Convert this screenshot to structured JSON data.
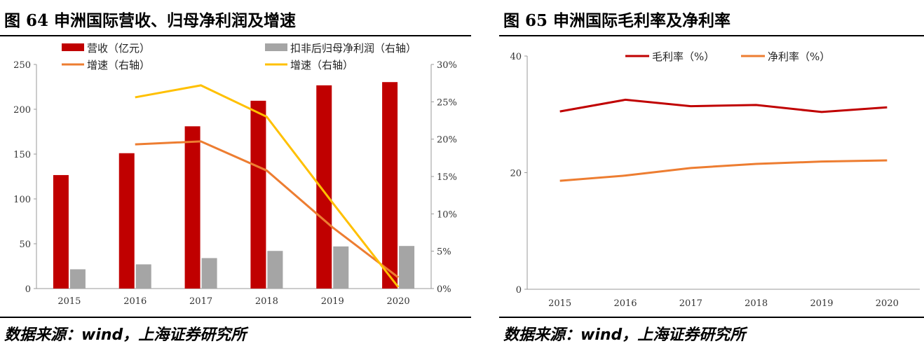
{
  "fig64": {
    "title_prefix": "图",
    "title_num": "64",
    "title_text": "申洲国际营收、归母净利润及增速",
    "source": "数据来源：wind，上海证券研究所"
  },
  "fig65": {
    "title_prefix": "图",
    "title_num": "65",
    "title_text": "申洲国际毛利率及净利率",
    "source": "数据来源：wind，上海证券研究所"
  },
  "chart_data": [
    {
      "type": "bar",
      "categories": [
        "2015",
        "2016",
        "2017",
        "2018",
        "2019",
        "2020"
      ],
      "series": [
        {
          "name": "营收（亿元）",
          "kind": "bar",
          "axis": "left",
          "color": "#c00000",
          "values": [
            126.6,
            151,
            181,
            209.5,
            226.7,
            230.3
          ]
        },
        {
          "name": "扣非后归母净利润（右轴）",
          "kind": "bar",
          "axis": "left",
          "color": "#a5a5a5",
          "values": [
            21.5,
            27,
            34,
            42,
            47,
            47.5
          ]
        },
        {
          "name": "增速（右轴）",
          "kind": "line",
          "axis": "right",
          "color": "#ed7d31",
          "values": [
            null,
            19.3,
            19.7,
            15.8,
            8.2,
            1.5
          ]
        },
        {
          "name": "增速（右轴）",
          "kind": "line",
          "axis": "right",
          "color": "#ffc000",
          "values": [
            null,
            25.6,
            27.2,
            23.0,
            11.5,
            0.2
          ]
        }
      ],
      "ylim_left": [
        0,
        250
      ],
      "yticks_left": [
        "0",
        "50",
        "100",
        "150",
        "200",
        "250"
      ],
      "ylim_right": [
        0,
        30
      ],
      "yticks_right": [
        "0%",
        "5%",
        "10%",
        "15%",
        "20%",
        "25%",
        "30%"
      ],
      "legend": "top"
    },
    {
      "type": "line",
      "categories": [
        "2015",
        "2016",
        "2017",
        "2018",
        "2019",
        "2020"
      ],
      "series": [
        {
          "name": "毛利率（%）",
          "color": "#c00000",
          "values": [
            30.5,
            32.5,
            31.4,
            31.6,
            30.4,
            31.2
          ]
        },
        {
          "name": "净利率（%）",
          "color": "#ed7d31",
          "values": [
            18.6,
            19.5,
            20.8,
            21.5,
            21.9,
            22.1
          ]
        }
      ],
      "ylim": [
        0,
        40
      ],
      "yticks": [
        "0",
        "20",
        "40"
      ],
      "legend": "top"
    }
  ]
}
